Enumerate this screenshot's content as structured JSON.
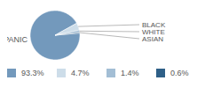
{
  "chart_data": {
    "type": "pie",
    "categories": [
      "HISPANIC",
      "BLACK",
      "WHITE",
      "ASIAN"
    ],
    "values": [
      93.3,
      4.7,
      1.4,
      0.6
    ],
    "value_labels": [
      "93.3%",
      "4.7%",
      "1.4%",
      "0.6%"
    ],
    "colors": [
      "#7399bc",
      "#cddde9",
      "#a3bed5",
      "#2e5f87"
    ],
    "legend": "bottom"
  }
}
